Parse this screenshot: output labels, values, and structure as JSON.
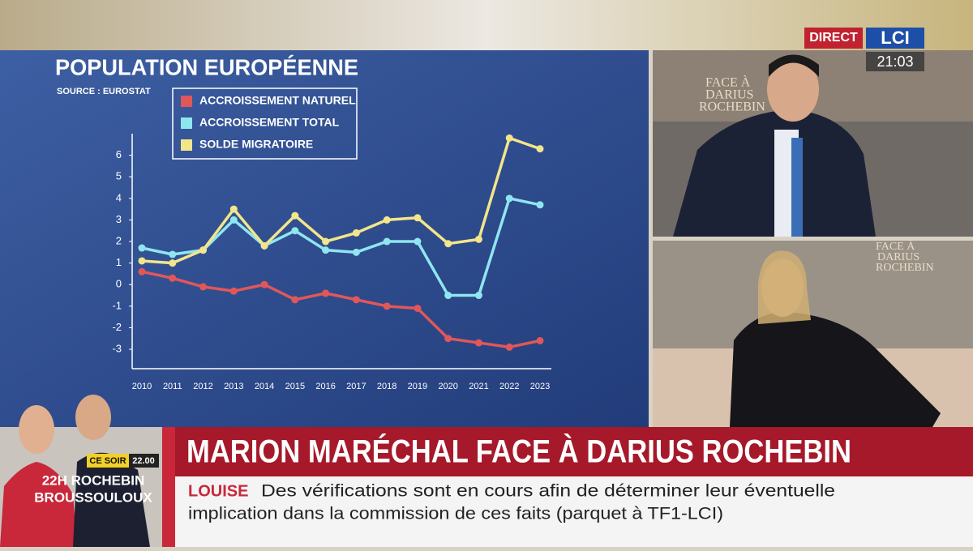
{
  "chart_data": {
    "type": "line",
    "title": "POPULATION EUROPÉENNE",
    "subtitle": "SOURCE : EUROSTAT",
    "categories": [
      "2010",
      "2011",
      "2012",
      "2013",
      "2014",
      "2015",
      "2016",
      "2017",
      "2018",
      "2019",
      "2020",
      "2021",
      "2022",
      "2023"
    ],
    "series": [
      {
        "name": "ACCROISSEMENT NATUREL",
        "color": "#e0575a",
        "values": [
          0.6,
          0.3,
          -0.1,
          -0.3,
          0,
          -0.7,
          -0.4,
          -0.7,
          -1,
          -1.1,
          -2.5,
          -2.7,
          -2.9,
          -2.6
        ]
      },
      {
        "name": "ACCROISSEMENT TOTAL",
        "color": "#8fe6f0",
        "values": [
          1.7,
          1.4,
          1.6,
          3.0,
          1.8,
          2.5,
          1.6,
          1.5,
          2.0,
          2.0,
          -0.5,
          -0.5,
          4.0,
          3.7
        ]
      },
      {
        "name": "SOLDE MIGRATOIRE",
        "color": "#f3e58a",
        "values": [
          1.1,
          1.0,
          1.6,
          3.5,
          1.8,
          3.2,
          2.0,
          2.4,
          3.0,
          3.1,
          1.9,
          2.1,
          6.8,
          6.3
        ]
      }
    ],
    "ylim": [
      -3.9,
      7
    ],
    "yticks": [
      6,
      5,
      4,
      3,
      2,
      1,
      0,
      -1,
      -2,
      -3
    ]
  },
  "overlay": {
    "live": "DIRECT",
    "channel": "LCI",
    "time": "21:03",
    "studio_sign": [
      "FACE À",
      "DARIUS",
      "ROCHEBIN"
    ],
    "headline": "MARION MARÉCHAL FACE À DARIUS ROCHEBIN",
    "ticker_source": "LOUISE",
    "ticker_lines": [
      "Des vérifications sont en cours afin de déterminer leur éventuelle",
      "implication dans la commission de ces faits (parquet à TF1-LCI)"
    ],
    "promo_tag": "CE SOIR",
    "promo_time": "22.00",
    "promo_lines": [
      "22H ROCHEBIN",
      "BROUSSOULOUX"
    ]
  }
}
